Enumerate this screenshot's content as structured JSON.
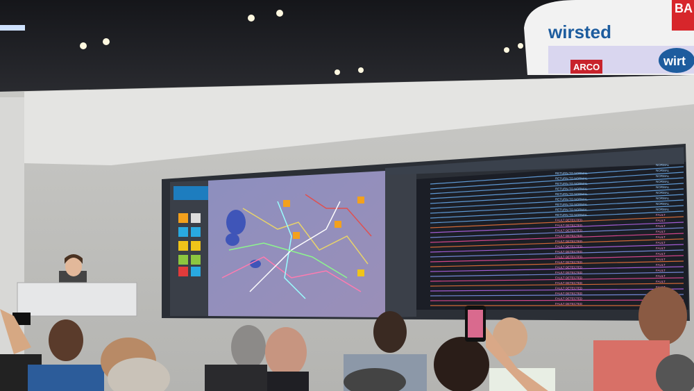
{
  "booth": {
    "sign_text": "wirsted",
    "banner_texts": [
      "BA",
      "ARCO",
      "wirt"
    ]
  },
  "screen": {
    "events": [
      "RETURN TO NORMAL",
      "FAULT DETECTED"
    ],
    "statuses": [
      "NORMAL",
      "FAULT"
    ]
  }
}
